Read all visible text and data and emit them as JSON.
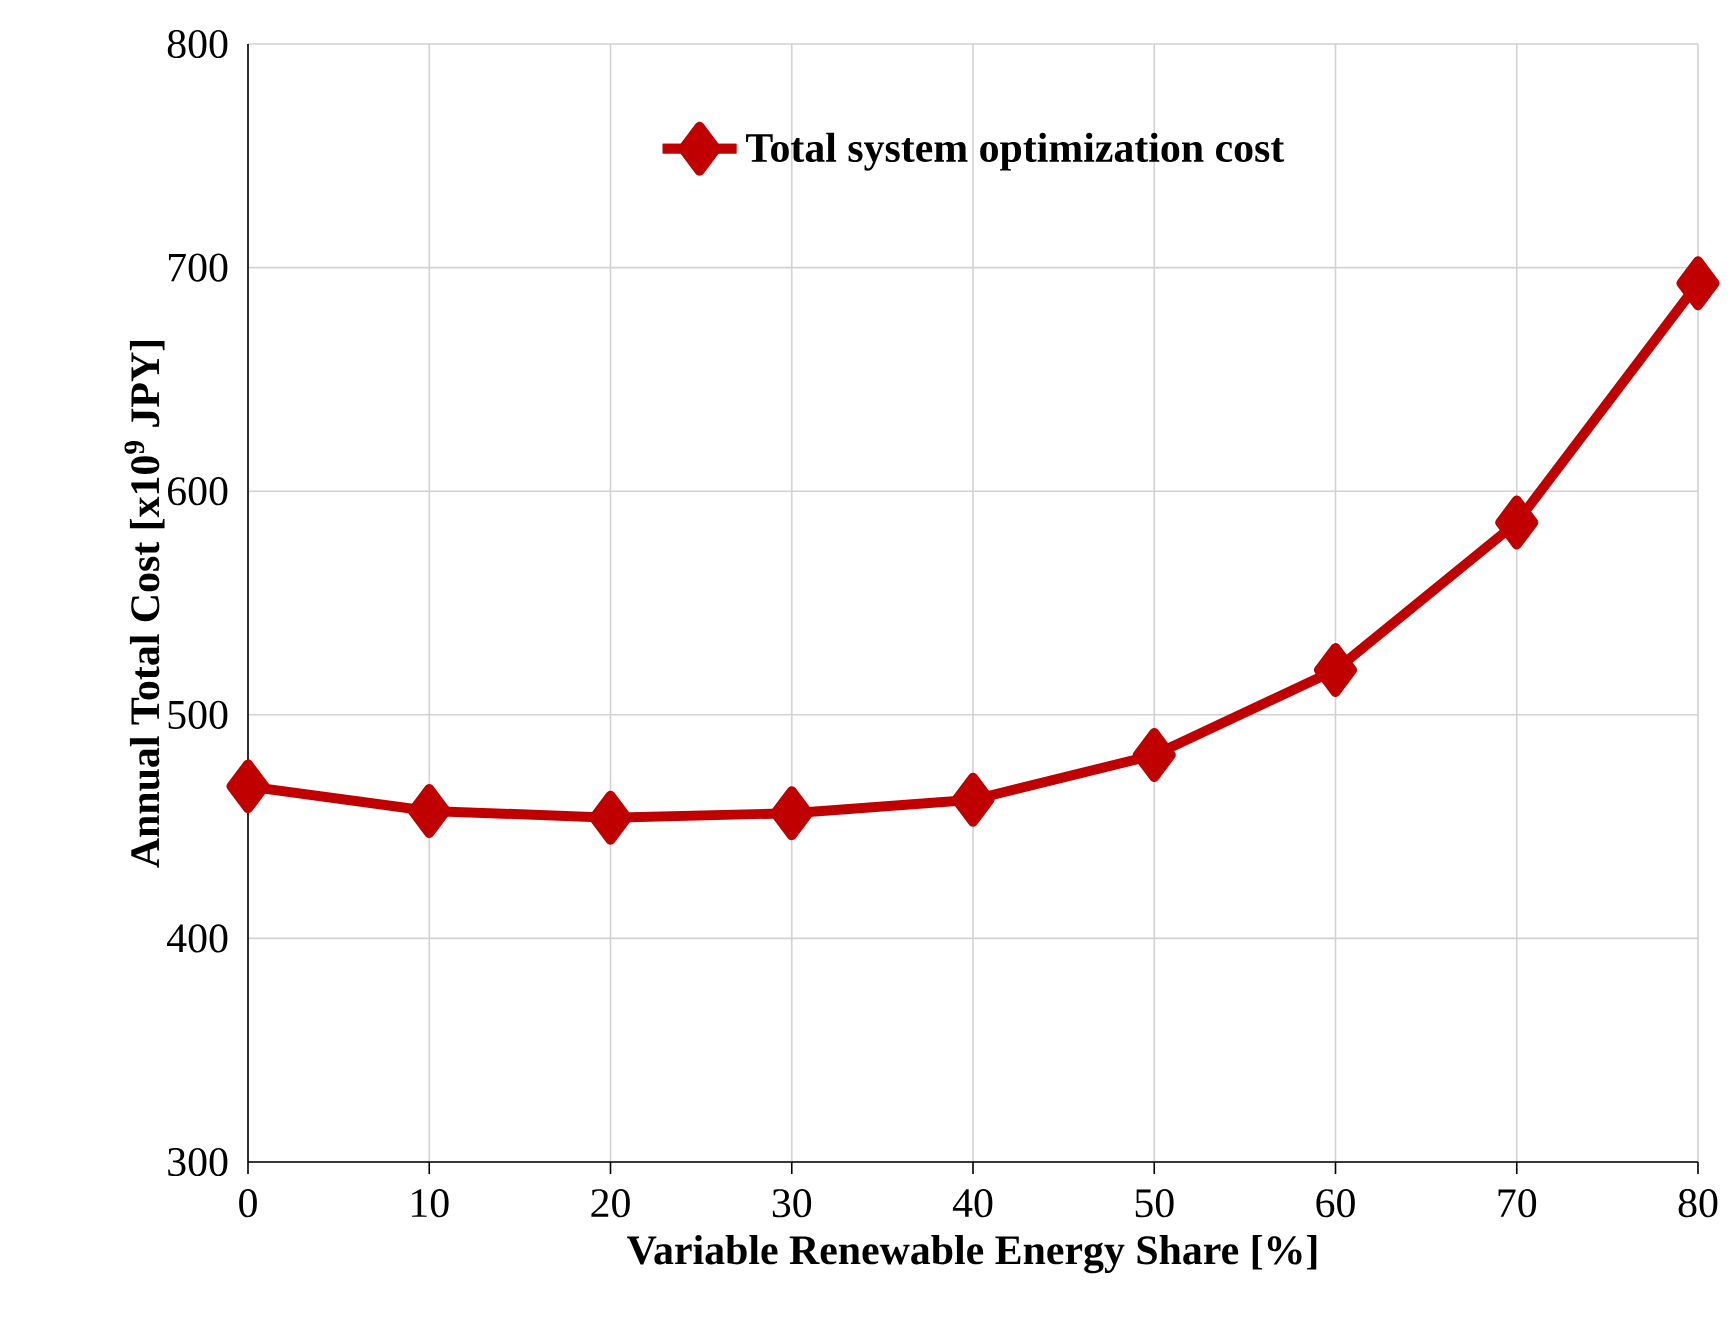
{
  "chart_data": {
    "type": "line",
    "xlabel": "Variable Renewable Energy Share [%]",
    "ylabel": "Annual Total Cost [x10$^{9}$ JPY]",
    "x": [
      0,
      10,
      20,
      30,
      40,
      50,
      60,
      70,
      80
    ],
    "series": [
      {
        "name": "**Total system optimization cost**",
        "color": "#c00000",
        "values": [
          468,
          457,
          454,
          456,
          462,
          482,
          520,
          586,
          693
        ]
      }
    ],
    "xlim": [
      0,
      80
    ],
    "ylim": [
      300,
      800
    ],
    "xticks": [
      0,
      10,
      20,
      30,
      40,
      50,
      60,
      70,
      80
    ],
    "yticks": [
      300,
      400,
      500,
      600,
      700,
      800
    ],
    "grid": true,
    "legend": "top",
    "marker": "diamond",
    "line_style": "solid"
  }
}
